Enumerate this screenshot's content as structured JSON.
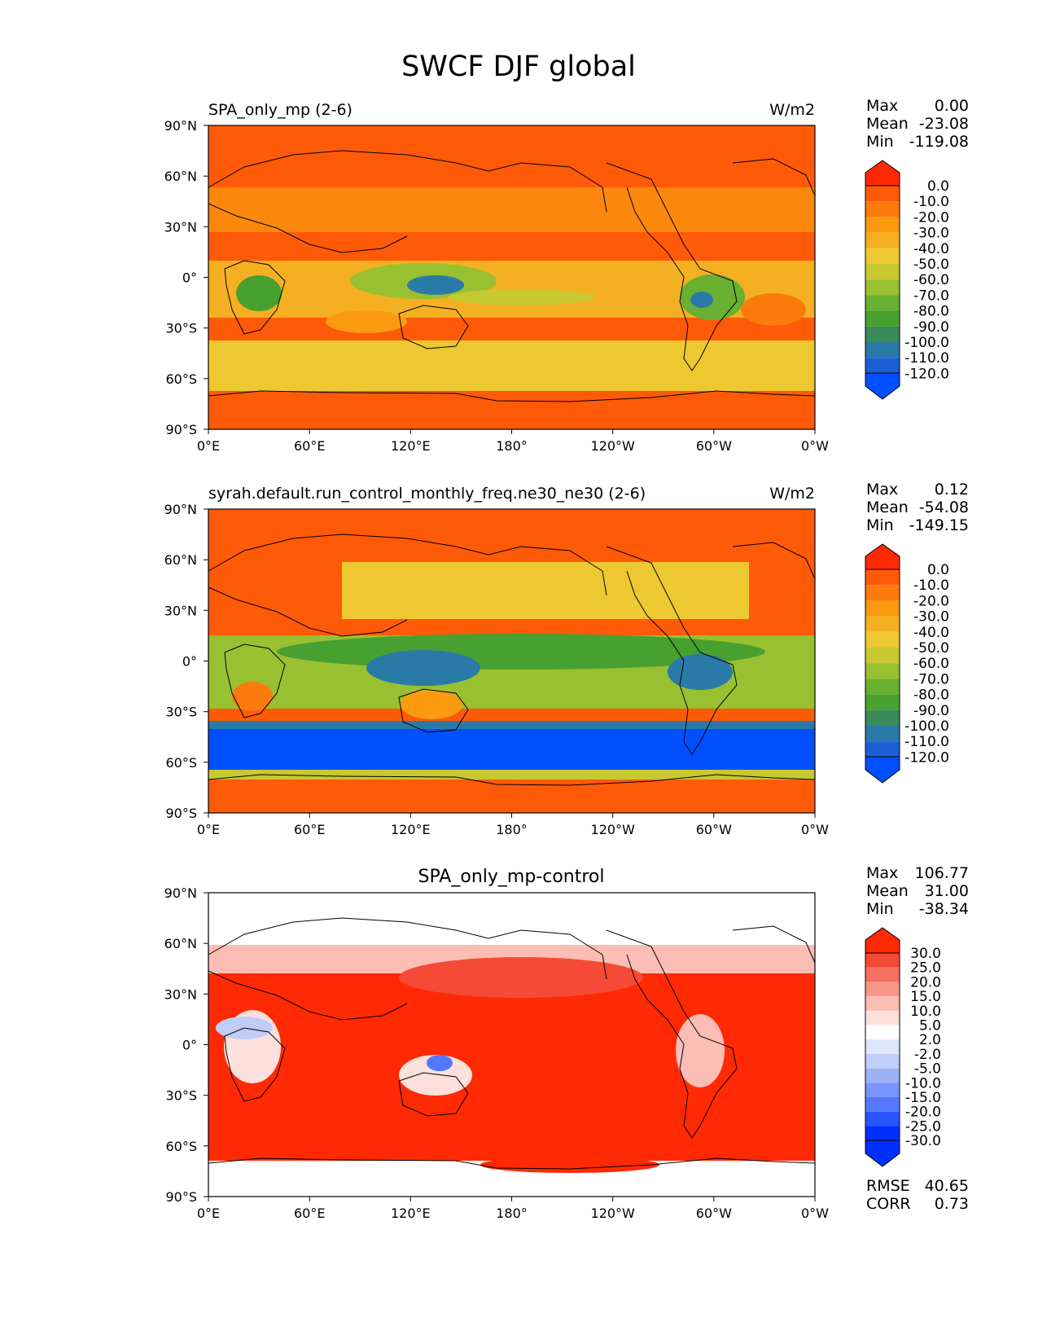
{
  "figure": {
    "title": "SWCF DJF global"
  },
  "colors": {
    "abs_levels": [
      "#0050ff",
      "#1a5fd6",
      "#2a7aa8",
      "#3a8a5a",
      "#48a030",
      "#6ab030",
      "#98c030",
      "#c8c830",
      "#eec830",
      "#f4b020",
      "#fb9a10",
      "#fd7a0c",
      "#ff5a08",
      "#ff2a04"
    ],
    "diff_levels": [
      "#0030ff",
      "#2a55ff",
      "#5577ff",
      "#7a95ff",
      "#9db2f5",
      "#bfcdf7",
      "#dfe6fb",
      "#ffffff",
      "#fde0dc",
      "#fbbdb4",
      "#f8968a",
      "#f66f60",
      "#f44a36",
      "#ff2a04"
    ],
    "ocean_base_abs": "#ff5a08",
    "land_stroke": "#000000"
  },
  "panels": [
    {
      "id": "test",
      "left_title": "SPA_only_mp (2-6)",
      "center_title": "",
      "units": "W/m2",
      "stats": [
        {
          "label": "Max",
          "value": "0.00"
        },
        {
          "label": "Mean",
          "value": "-23.08"
        },
        {
          "label": "Min",
          "value": "-119.08"
        }
      ],
      "colorbar_labels": [
        "0.0",
        "-10.0",
        "-20.0",
        "-30.0",
        "-40.0",
        "-50.0",
        "-60.0",
        "-70.0",
        "-80.0",
        "-90.0",
        "-100.0",
        "-110.0",
        "-120.0"
      ],
      "metrics": []
    },
    {
      "id": "ref",
      "left_title": "syrah.default.run_control_monthly_freq.ne30_ne30 (2-6)",
      "center_title": "",
      "units": "W/m2",
      "stats": [
        {
          "label": "Max",
          "value": "0.12"
        },
        {
          "label": "Mean",
          "value": "-54.08"
        },
        {
          "label": "Min",
          "value": "-149.15"
        }
      ],
      "colorbar_labels": [
        "0.0",
        "-10.0",
        "-20.0",
        "-30.0",
        "-40.0",
        "-50.0",
        "-60.0",
        "-70.0",
        "-80.0",
        "-90.0",
        "-100.0",
        "-110.0",
        "-120.0"
      ],
      "metrics": []
    },
    {
      "id": "diff",
      "left_title": "",
      "center_title": "SPA_only_mp-control",
      "units": "",
      "stats": [
        {
          "label": "Max",
          "value": "106.77"
        },
        {
          "label": "Mean",
          "value": "31.00"
        },
        {
          "label": "Min",
          "value": "-38.34"
        }
      ],
      "colorbar_labels": [
        "30.0",
        "25.0",
        "20.0",
        "15.0",
        "10.0",
        "5.0",
        "2.0",
        "-2.0",
        "-5.0",
        "-10.0",
        "-15.0",
        "-20.0",
        "-25.0",
        "-30.0"
      ],
      "metrics": [
        {
          "label": "RMSE",
          "value": "40.65"
        },
        {
          "label": "CORR",
          "value": "0.73"
        }
      ]
    }
  ],
  "chart_data": {
    "type": "heatmap",
    "title": "SWCF DJF global",
    "projection": "PlateCarree",
    "x_ticks": [
      "0°E",
      "60°E",
      "120°E",
      "180°",
      "120°W",
      "60°W",
      "0°W"
    ],
    "y_ticks": [
      "90°N",
      "60°N",
      "30°N",
      "0°",
      "30°S",
      "60°S",
      "90°S"
    ],
    "xlim": [
      0,
      360
    ],
    "ylim": [
      -90,
      90
    ],
    "series": [
      {
        "name": "SPA_only_mp (2-6)",
        "units": "W/m2",
        "max": 0.0,
        "mean": -23.08,
        "min": -119.08
      },
      {
        "name": "syrah.default.run_control_monthly_freq.ne30_ne30 (2-6)",
        "units": "W/m2",
        "max": 0.12,
        "mean": -54.08,
        "min": -149.15
      },
      {
        "name": "SPA_only_mp-control",
        "max": 106.77,
        "mean": 31.0,
        "min": -38.34,
        "rmse": 40.65,
        "corr": 0.73
      }
    ]
  }
}
